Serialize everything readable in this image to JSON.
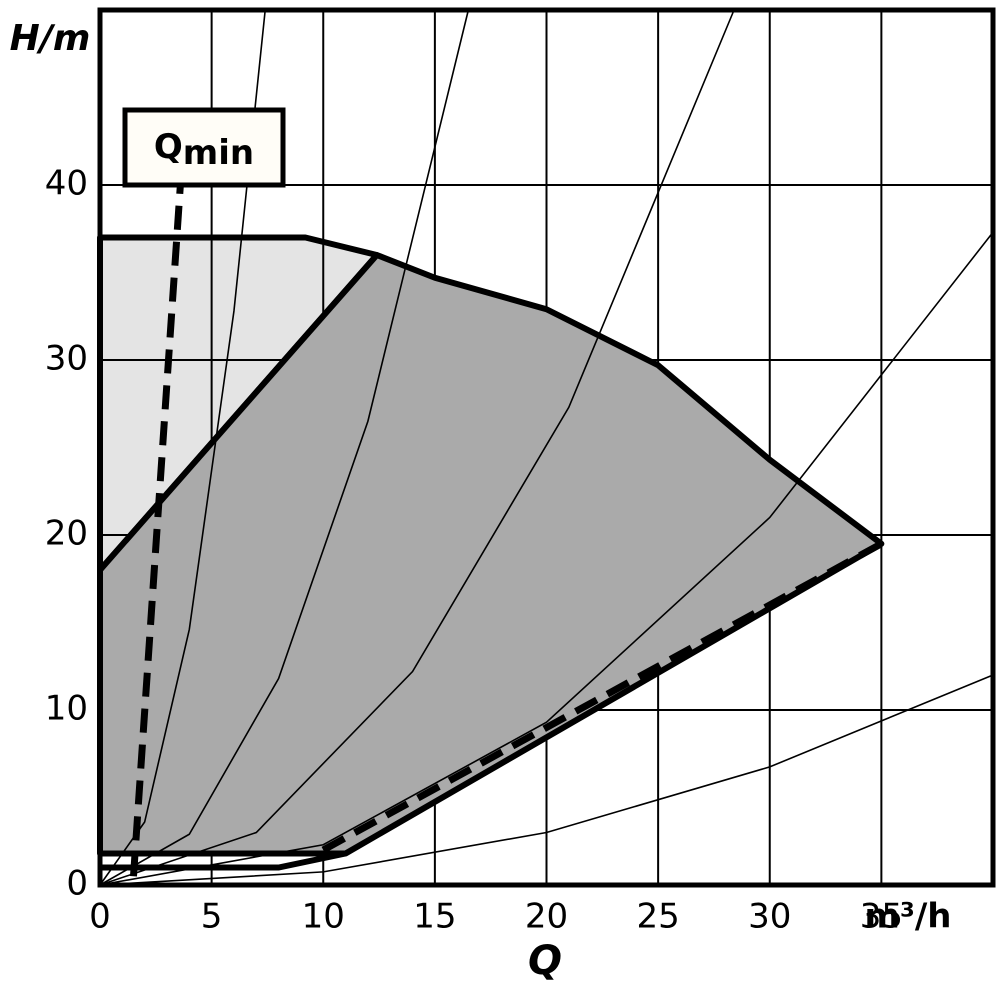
{
  "chart_data": {
    "type": "line",
    "y_label": "H/m",
    "x_label": "Q",
    "x_unit": "m³/h",
    "annotation": {
      "text": "Q",
      "sub": "min"
    },
    "xlim": [
      0,
      40
    ],
    "ylim": [
      0,
      50
    ],
    "xticks": [
      0,
      5,
      10,
      15,
      20,
      25,
      30,
      35
    ],
    "yticks": [
      0,
      10,
      20,
      30,
      40
    ],
    "grid": true,
    "series": [
      {
        "style": "fill",
        "color": "#e4e4e4",
        "x": [
          0,
          9.2,
          12.4,
          0
        ],
        "values": [
          37,
          37,
          36,
          18
        ]
      },
      {
        "style": "fill",
        "color": "#aaaaaa",
        "x": [
          0,
          12.4,
          15,
          20,
          25,
          30,
          35,
          11,
          0
        ],
        "values": [
          18,
          36,
          34.7,
          32.9,
          29.7,
          24.3,
          19.5,
          1.8,
          1.8
        ]
      },
      {
        "style": "thin",
        "color": "#000000",
        "x": [
          0,
          2,
          4,
          6,
          7.4
        ],
        "values": [
          0,
          3.6,
          14.6,
          32.8,
          50
        ]
      },
      {
        "style": "thin",
        "color": "#000000",
        "x": [
          0,
          4,
          8,
          12,
          16.5
        ],
        "values": [
          0,
          2.9,
          11.8,
          26.5,
          50
        ]
      },
      {
        "style": "thin",
        "color": "#000000",
        "x": [
          0,
          7,
          14,
          21,
          28.4
        ],
        "values": [
          0,
          3,
          12.2,
          27.3,
          50
        ]
      },
      {
        "style": "thin",
        "color": "#000000",
        "x": [
          0,
          10,
          20,
          30,
          40
        ],
        "values": [
          0,
          2.3,
          9.3,
          21,
          37.3
        ]
      },
      {
        "style": "thin",
        "color": "#000000",
        "x": [
          0,
          10,
          20,
          30,
          40
        ],
        "values": [
          0,
          0.75,
          3,
          6.75,
          12
        ]
      },
      {
        "style": "thick",
        "color": "#000000",
        "x": [
          0,
          8,
          11
        ],
        "values": [
          1,
          1,
          1.8
        ]
      },
      {
        "style": "dashed",
        "color": "#000000",
        "x": [
          10,
          35
        ],
        "values": [
          2,
          19.5
        ]
      },
      {
        "style": "dashed",
        "color": "#000000",
        "x": [
          1.5,
          3.6
        ],
        "values": [
          0.5,
          40
        ]
      }
    ]
  }
}
